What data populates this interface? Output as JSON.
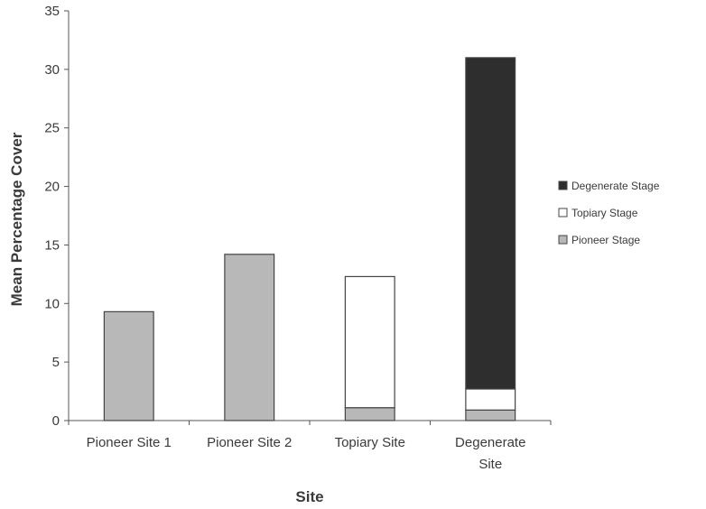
{
  "chart_data": {
    "type": "bar",
    "stacked": true,
    "categories": [
      [
        "Pioneer Site 1"
      ],
      [
        "Pioneer Site 2"
      ],
      [
        "Topiary Site"
      ],
      [
        "Degenerate",
        "Site"
      ]
    ],
    "series": [
      {
        "name": "Pioneer Stage",
        "values": [
          9.3,
          14.2,
          1.1,
          0.9
        ],
        "color": "#b8b8b8"
      },
      {
        "name": "Topiary Stage",
        "values": [
          0,
          0,
          11.2,
          1.8
        ],
        "color": "#ffffff"
      },
      {
        "name": "Degenerate Stage",
        "values": [
          0,
          0,
          0,
          28.3
        ],
        "color": "#2e2e2e"
      }
    ],
    "legend_order": [
      "Degenerate Stage",
      "Topiary Stage",
      "Pioneer Stage"
    ],
    "legend_position": "right",
    "xlabel": "Site",
    "ylabel": "Mean Percentage Cover",
    "ylim": [
      0,
      35
    ],
    "yticks": [
      0,
      5,
      10,
      15,
      20,
      25,
      30,
      35
    ],
    "grid": false
  }
}
